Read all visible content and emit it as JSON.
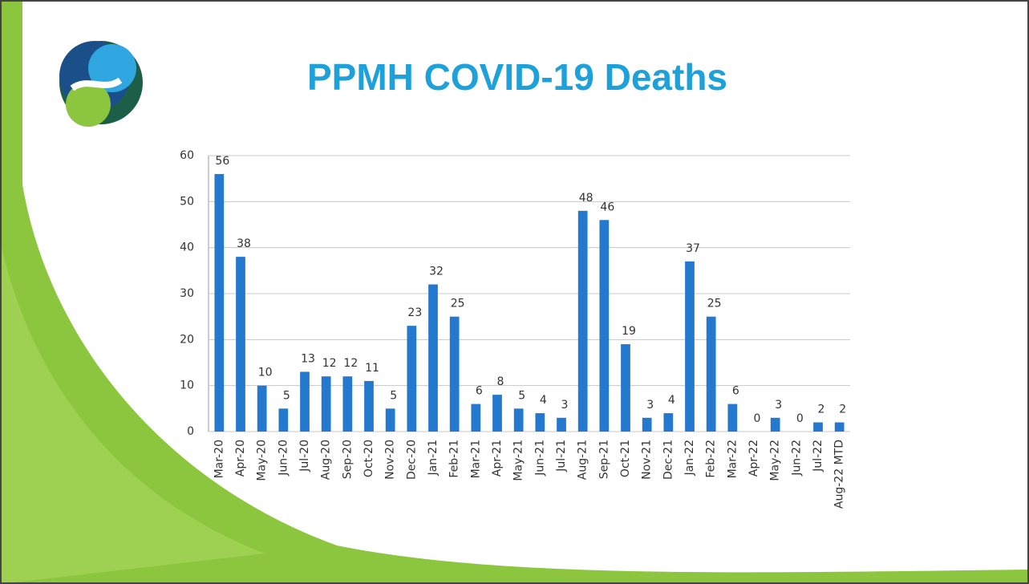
{
  "chart_data": {
    "type": "bar",
    "title": "PPMH COVID-19 Deaths",
    "categories": [
      "Mar-20",
      "Apr-20",
      "May-20",
      "Jun-20",
      "Jul-20",
      "Aug-20",
      "Sep-20",
      "Oct-20",
      "Nov-20",
      "Dec-20",
      "Jan-21",
      "Feb-21",
      "Mar-21",
      "Apr-21",
      "May-21",
      "Jun-21",
      "Jul-21",
      "Aug-21",
      "Sep-21",
      "Oct-21",
      "Nov-21",
      "Dec-21",
      "Jan-22",
      "Feb-22",
      "Mar-22",
      "Apr-22",
      "May-22",
      "Jun-22",
      "Jul-22",
      "Aug-22 MTD"
    ],
    "values": [
      56,
      38,
      10,
      5,
      13,
      12,
      12,
      11,
      5,
      23,
      32,
      25,
      6,
      8,
      5,
      4,
      3,
      48,
      46,
      19,
      3,
      4,
      37,
      25,
      6,
      0,
      3,
      0,
      2,
      2
    ],
    "color": "#2479cf",
    "ylim": [
      0,
      60
    ],
    "yticks": [
      0,
      10,
      20,
      30,
      40,
      50,
      60
    ],
    "grid": true
  }
}
